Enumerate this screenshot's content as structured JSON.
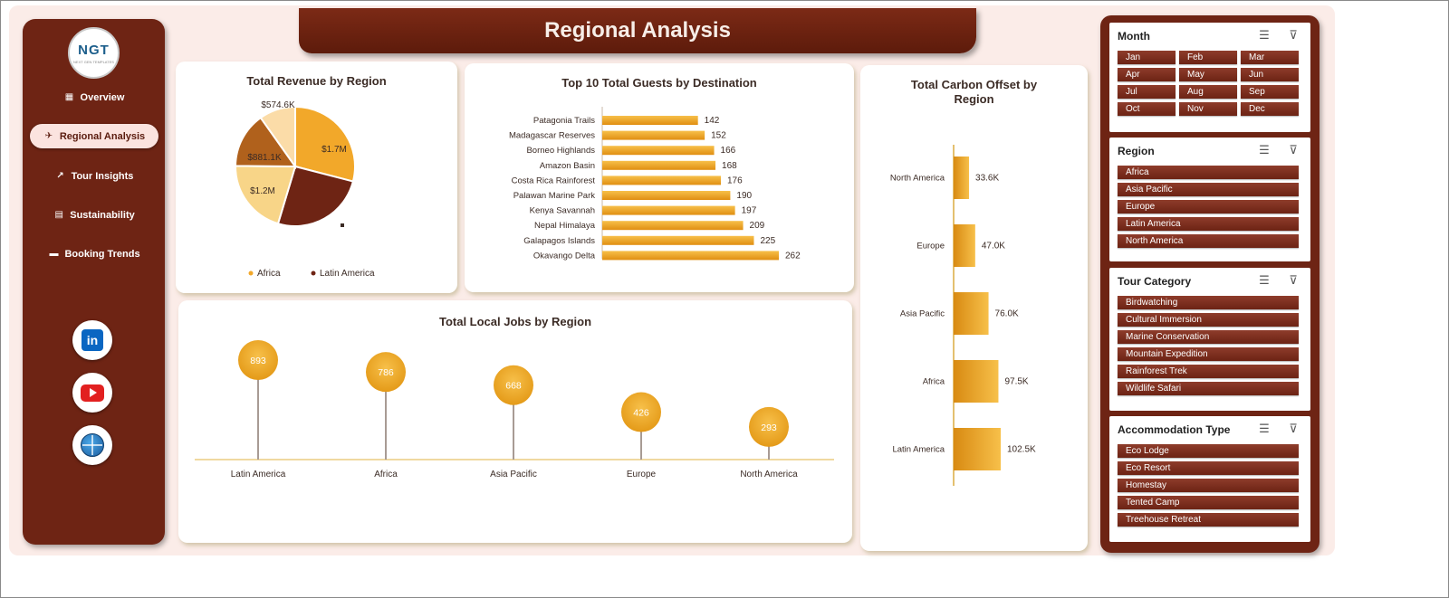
{
  "header": {
    "title": "Regional Analysis"
  },
  "logo": {
    "text": "NGT",
    "subtext": "NEXT GEN TEMPLATES"
  },
  "sidebar": {
    "items": [
      {
        "label": "Overview",
        "icon": "chart-icon"
      },
      {
        "label": "Regional Analysis",
        "icon": "map-icon",
        "active": true
      },
      {
        "label": "Tour Insights",
        "icon": "trend-icon"
      },
      {
        "label": "Sustainability",
        "icon": "clipboard-icon"
      },
      {
        "label": "Booking Trends",
        "icon": "folder-icon"
      }
    ],
    "social": [
      "linkedin-icon",
      "youtube-icon",
      "globe-icon"
    ]
  },
  "revenue": {
    "title": "Total Revenue by Region",
    "labels": [
      "$1.7M",
      "$1.2M",
      "$881.1K",
      "$574.6K"
    ],
    "legend": [
      "Africa",
      "Latin America"
    ]
  },
  "guests": {
    "title": "Top 10 Total Guests by Destination"
  },
  "carbon": {
    "title": "Total Carbon Offset by Region"
  },
  "jobs": {
    "title": "Total Local Jobs by Region"
  },
  "chart_data": [
    {
      "type": "pie",
      "title": "Total Revenue by Region",
      "values": [
        1.7,
        1.5,
        1.2,
        0.8811,
        0.5746
      ],
      "labels": [
        "$1.7M",
        "",
        "$1.2M",
        "$881.1K",
        "$574.6K"
      ],
      "colors": [
        "#f2a82a",
        "#6e2414",
        "#f8d588",
        "#b0611c",
        "#fbdca8"
      ],
      "legend": [
        "Africa",
        "Latin America"
      ],
      "legend_position": "bottom"
    },
    {
      "type": "bar",
      "title": "Top 10 Total Guests by Destination",
      "orientation": "horizontal",
      "categories": [
        "Patagonia Trails",
        "Madagascar Reserves",
        "Borneo Highlands",
        "Amazon Basin",
        "Costa Rica Rainforest",
        "Palawan Marine Park",
        "Kenya Savannah",
        "Nepal Himalaya",
        "Galapagos Islands",
        "Okavango Delta"
      ],
      "values": [
        142,
        152,
        166,
        168,
        176,
        190,
        197,
        209,
        225,
        262
      ],
      "color": "#f2a82a"
    },
    {
      "type": "bar",
      "title": "Total Carbon Offset by Region",
      "orientation": "horizontal",
      "categories": [
        "North America",
        "Europe",
        "Asia Pacific",
        "Africa",
        "Latin America"
      ],
      "values": [
        33.6,
        47.0,
        76.0,
        97.5,
        102.5
      ],
      "labels": [
        "33.6K",
        "47.0K",
        "76.0K",
        "97.5K",
        "102.5K"
      ],
      "color": "#f2a82a"
    },
    {
      "type": "scatter",
      "style": "lollipop",
      "title": "Total Local Jobs by Region",
      "categories": [
        "Latin America",
        "Africa",
        "Asia Pacific",
        "Europe",
        "North America"
      ],
      "values": [
        893,
        786,
        668,
        426,
        293
      ],
      "color": "#f2a82a"
    }
  ],
  "slicers": [
    {
      "title": "Month",
      "items": [
        "Jan",
        "Feb",
        "Mar",
        "Apr",
        "May",
        "Jun",
        "Jul",
        "Aug",
        "Sep",
        "Oct",
        "Nov",
        "Dec"
      ]
    },
    {
      "title": "Region",
      "items": [
        "Africa",
        "Asia Pacific",
        "Europe",
        "Latin America",
        "North America"
      ]
    },
    {
      "title": "Tour Category",
      "items": [
        "Birdwatching",
        "Cultural Immersion",
        "Marine Conservation",
        "Mountain Expedition",
        "Rainforest Trek",
        "Wildlife Safari"
      ]
    },
    {
      "title": "Accommodation Type",
      "items": [
        "Eco Lodge",
        "Eco Resort",
        "Homestay",
        "Tented Camp",
        "Treehouse Retreat"
      ]
    }
  ]
}
